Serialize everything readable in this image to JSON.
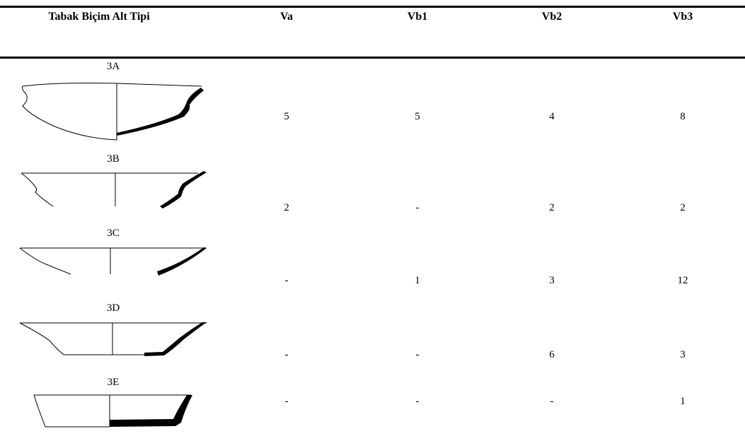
{
  "table": {
    "headers": [
      "Tabak Biçim Alt Tipi",
      "Va",
      "Vb1",
      "Vb2",
      "Vb3"
    ],
    "rows": [
      {
        "label": "3A",
        "drawing": "bowl-profile-3a",
        "values": [
          "5",
          "5",
          "4",
          "8"
        ]
      },
      {
        "label": "3B",
        "drawing": "bowl-profile-3b",
        "values": [
          "2",
          "-",
          "2",
          "2"
        ]
      },
      {
        "label": "3C",
        "drawing": "bowl-profile-3c",
        "values": [
          "-",
          "1",
          "3",
          "12"
        ]
      },
      {
        "label": "3D",
        "drawing": "bowl-profile-3d",
        "values": [
          "-",
          "-",
          "6",
          "3"
        ]
      },
      {
        "label": "3E",
        "drawing": "bowl-profile-3e",
        "values": [
          "-",
          "-",
          "-",
          "1"
        ]
      }
    ]
  }
}
